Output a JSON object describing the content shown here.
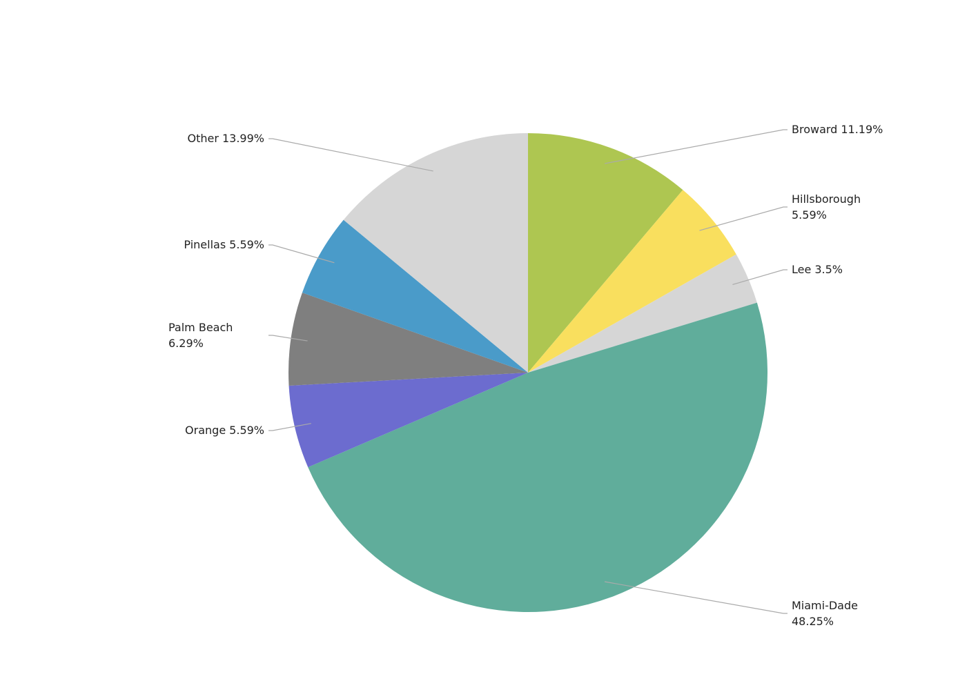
{
  "chart_data": {
    "type": "pie",
    "categories": [
      "Broward",
      "Hillsborough",
      "Lee",
      "Miami-Dade",
      "Orange",
      "Palm Beach",
      "Pinellas",
      "Other"
    ],
    "values": [
      11.19,
      5.59,
      3.5,
      48.25,
      5.59,
      6.29,
      5.59,
      13.99
    ],
    "value_labels": [
      "11.19%",
      "5.59%",
      "3.5%",
      "48.25%",
      "5.59%",
      "6.29%",
      "5.59%",
      "13.99%"
    ],
    "colors": [
      "#aec651",
      "#f9df5e",
      "#d6d6d6",
      "#60ad9b",
      "#6c6ccf",
      "#7f7f7f",
      "#4a9bc9",
      "#d6d6d6"
    ]
  }
}
